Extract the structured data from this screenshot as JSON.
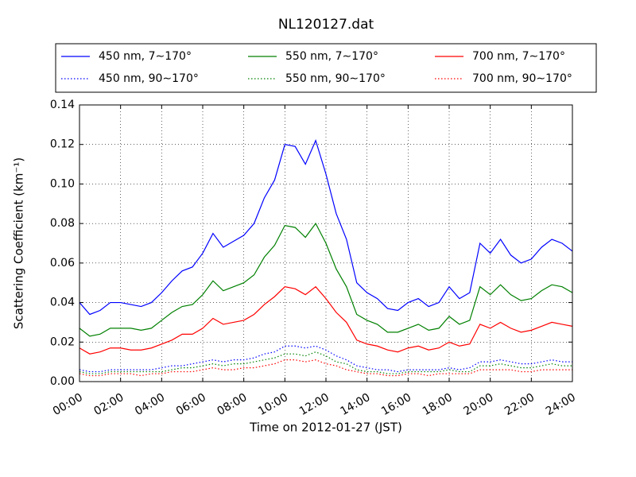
{
  "chart_data": {
    "type": "line",
    "title": "NL120127.dat",
    "xlabel": "Time on 2012-01-27 (JST)",
    "ylabel": "Scattering Coefficient (km⁻¹)",
    "x": [
      0,
      0.5,
      1,
      1.5,
      2,
      2.5,
      3,
      3.5,
      4,
      4.5,
      5,
      5.5,
      6,
      6.5,
      7,
      7.5,
      8,
      8.5,
      9,
      9.5,
      10,
      10.5,
      11,
      11.5,
      12,
      12.5,
      13,
      13.5,
      14,
      14.5,
      15,
      15.5,
      16,
      16.5,
      17,
      17.5,
      18,
      18.5,
      19,
      19.5,
      20,
      20.5,
      21,
      21.5,
      22,
      22.5,
      23,
      23.5,
      24
    ],
    "xlim": [
      0,
      24
    ],
    "xticks": [
      {
        "value": 0,
        "label": "00:00"
      },
      {
        "value": 2,
        "label": "02:00"
      },
      {
        "value": 4,
        "label": "04:00"
      },
      {
        "value": 6,
        "label": "06:00"
      },
      {
        "value": 8,
        "label": "08:00"
      },
      {
        "value": 10,
        "label": "10:00"
      },
      {
        "value": 12,
        "label": "12:00"
      },
      {
        "value": 14,
        "label": "14:00"
      },
      {
        "value": 16,
        "label": "16:00"
      },
      {
        "value": 18,
        "label": "18:00"
      },
      {
        "value": 20,
        "label": "20:00"
      },
      {
        "value": 22,
        "label": "22:00"
      },
      {
        "value": 24,
        "label": "24:00"
      }
    ],
    "ylim": [
      0,
      0.14
    ],
    "yticks": [
      {
        "value": 0,
        "label": "0.00"
      },
      0.02,
      0.04,
      0.06,
      0.08,
      {
        "value": 0.1,
        "label": "0.10"
      },
      0.12,
      0.14
    ],
    "grid": true,
    "legend": "top",
    "series": [
      {
        "name": "450 nm, 7∼170°",
        "color": "#0000ff",
        "linestyle": "solid",
        "values": [
          0.04,
          0.034,
          0.036,
          0.04,
          0.04,
          0.039,
          0.038,
          0.04,
          0.045,
          0.051,
          0.056,
          0.058,
          0.065,
          0.075,
          0.068,
          0.071,
          0.074,
          0.08,
          0.093,
          0.102,
          0.12,
          0.119,
          0.11,
          0.122,
          0.105,
          0.085,
          0.072,
          0.05,
          0.045,
          0.042,
          0.037,
          0.036,
          0.04,
          0.042,
          0.038,
          0.04,
          0.048,
          0.042,
          0.045,
          0.07,
          0.065,
          0.072,
          0.064,
          0.06,
          0.062,
          0.068,
          0.072,
          0.07,
          0.066
        ]
      },
      {
        "name": "450 nm, 90∼170°",
        "color": "#0000ff",
        "linestyle": "dotted",
        "values": [
          0.006,
          0.005,
          0.005,
          0.006,
          0.006,
          0.006,
          0.006,
          0.006,
          0.007,
          0.008,
          0.008,
          0.009,
          0.01,
          0.011,
          0.01,
          0.011,
          0.011,
          0.012,
          0.014,
          0.015,
          0.018,
          0.018,
          0.017,
          0.018,
          0.016,
          0.013,
          0.011,
          0.008,
          0.007,
          0.006,
          0.006,
          0.005,
          0.006,
          0.006,
          0.006,
          0.006,
          0.007,
          0.006,
          0.007,
          0.01,
          0.01,
          0.011,
          0.01,
          0.009,
          0.009,
          0.01,
          0.011,
          0.01,
          0.01
        ]
      },
      {
        "name": "550 nm, 7∼170°",
        "color": "#008000",
        "linestyle": "solid",
        "values": [
          0.027,
          0.023,
          0.024,
          0.027,
          0.027,
          0.027,
          0.026,
          0.027,
          0.031,
          0.035,
          0.038,
          0.039,
          0.044,
          0.051,
          0.046,
          0.048,
          0.05,
          0.054,
          0.063,
          0.069,
          0.079,
          0.078,
          0.073,
          0.08,
          0.07,
          0.057,
          0.048,
          0.034,
          0.031,
          0.029,
          0.025,
          0.025,
          0.027,
          0.029,
          0.026,
          0.027,
          0.033,
          0.029,
          0.031,
          0.048,
          0.044,
          0.049,
          0.044,
          0.041,
          0.042,
          0.046,
          0.049,
          0.048,
          0.045
        ]
      },
      {
        "name": "550 nm, 90∼170°",
        "color": "#008000",
        "linestyle": "dotted",
        "values": [
          0.005,
          0.004,
          0.004,
          0.005,
          0.005,
          0.005,
          0.005,
          0.005,
          0.005,
          0.006,
          0.007,
          0.007,
          0.008,
          0.009,
          0.008,
          0.009,
          0.009,
          0.01,
          0.011,
          0.012,
          0.014,
          0.014,
          0.013,
          0.015,
          0.013,
          0.01,
          0.009,
          0.006,
          0.005,
          0.005,
          0.004,
          0.004,
          0.005,
          0.005,
          0.005,
          0.005,
          0.006,
          0.005,
          0.005,
          0.008,
          0.008,
          0.009,
          0.008,
          0.007,
          0.007,
          0.008,
          0.009,
          0.008,
          0.008
        ]
      },
      {
        "name": "700 nm, 7∼170°",
        "color": "#ff0000",
        "linestyle": "solid",
        "values": [
          0.017,
          0.014,
          0.015,
          0.017,
          0.017,
          0.016,
          0.016,
          0.017,
          0.019,
          0.021,
          0.024,
          0.024,
          0.027,
          0.032,
          0.029,
          0.03,
          0.031,
          0.034,
          0.039,
          0.043,
          0.048,
          0.047,
          0.044,
          0.048,
          0.042,
          0.035,
          0.03,
          0.021,
          0.019,
          0.018,
          0.016,
          0.015,
          0.017,
          0.018,
          0.016,
          0.017,
          0.02,
          0.018,
          0.019,
          0.029,
          0.027,
          0.03,
          0.027,
          0.025,
          0.026,
          0.028,
          0.03,
          0.029,
          0.028
        ]
      },
      {
        "name": "700 nm, 90∼170°",
        "color": "#ff0000",
        "linestyle": "dotted",
        "values": [
          0.004,
          0.003,
          0.003,
          0.004,
          0.004,
          0.004,
          0.003,
          0.004,
          0.004,
          0.005,
          0.005,
          0.005,
          0.006,
          0.007,
          0.006,
          0.006,
          0.007,
          0.007,
          0.008,
          0.009,
          0.011,
          0.011,
          0.01,
          0.011,
          0.009,
          0.008,
          0.006,
          0.005,
          0.004,
          0.004,
          0.003,
          0.003,
          0.004,
          0.004,
          0.003,
          0.004,
          0.004,
          0.004,
          0.004,
          0.006,
          0.006,
          0.006,
          0.006,
          0.005,
          0.005,
          0.006,
          0.006,
          0.006,
          0.006
        ]
      }
    ]
  }
}
